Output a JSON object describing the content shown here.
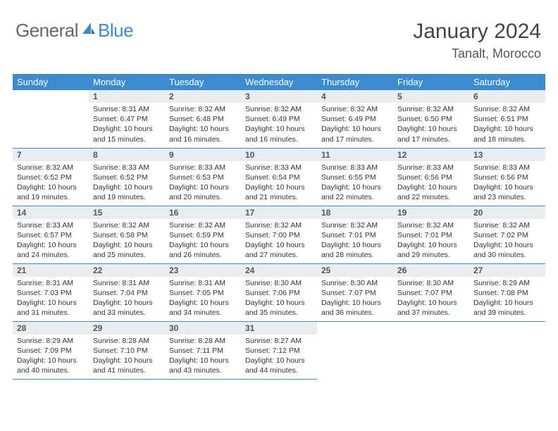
{
  "brand": {
    "part1": "General",
    "part2": "Blue"
  },
  "title": "January 2024",
  "location": "Tanalt, Morocco",
  "colors": {
    "header_bg": "#3b8ccf",
    "header_text": "#ffffff",
    "daynum_bg": "#e9edf0",
    "border": "#3b8ccf",
    "logo_gray": "#666666",
    "logo_blue": "#3b8ccf"
  },
  "weekdays": [
    "Sunday",
    "Monday",
    "Tuesday",
    "Wednesday",
    "Thursday",
    "Friday",
    "Saturday"
  ],
  "blank_cells_before_first": 1,
  "days": [
    {
      "n": "1",
      "sunrise": "8:31 AM",
      "sunset": "6:47 PM",
      "daylight": "10 hours and 15 minutes."
    },
    {
      "n": "2",
      "sunrise": "8:32 AM",
      "sunset": "6:48 PM",
      "daylight": "10 hours and 16 minutes."
    },
    {
      "n": "3",
      "sunrise": "8:32 AM",
      "sunset": "6:49 PM",
      "daylight": "10 hours and 16 minutes."
    },
    {
      "n": "4",
      "sunrise": "8:32 AM",
      "sunset": "6:49 PM",
      "daylight": "10 hours and 17 minutes."
    },
    {
      "n": "5",
      "sunrise": "8:32 AM",
      "sunset": "6:50 PM",
      "daylight": "10 hours and 17 minutes."
    },
    {
      "n": "6",
      "sunrise": "8:32 AM",
      "sunset": "6:51 PM",
      "daylight": "10 hours and 18 minutes."
    },
    {
      "n": "7",
      "sunrise": "8:32 AM",
      "sunset": "6:52 PM",
      "daylight": "10 hours and 19 minutes."
    },
    {
      "n": "8",
      "sunrise": "8:33 AM",
      "sunset": "6:52 PM",
      "daylight": "10 hours and 19 minutes."
    },
    {
      "n": "9",
      "sunrise": "8:33 AM",
      "sunset": "6:53 PM",
      "daylight": "10 hours and 20 minutes."
    },
    {
      "n": "10",
      "sunrise": "8:33 AM",
      "sunset": "6:54 PM",
      "daylight": "10 hours and 21 minutes."
    },
    {
      "n": "11",
      "sunrise": "8:33 AM",
      "sunset": "6:55 PM",
      "daylight": "10 hours and 22 minutes."
    },
    {
      "n": "12",
      "sunrise": "8:33 AM",
      "sunset": "6:56 PM",
      "daylight": "10 hours and 22 minutes."
    },
    {
      "n": "13",
      "sunrise": "8:33 AM",
      "sunset": "6:56 PM",
      "daylight": "10 hours and 23 minutes."
    },
    {
      "n": "14",
      "sunrise": "8:33 AM",
      "sunset": "6:57 PM",
      "daylight": "10 hours and 24 minutes."
    },
    {
      "n": "15",
      "sunrise": "8:32 AM",
      "sunset": "6:58 PM",
      "daylight": "10 hours and 25 minutes."
    },
    {
      "n": "16",
      "sunrise": "8:32 AM",
      "sunset": "6:59 PM",
      "daylight": "10 hours and 26 minutes."
    },
    {
      "n": "17",
      "sunrise": "8:32 AM",
      "sunset": "7:00 PM",
      "daylight": "10 hours and 27 minutes."
    },
    {
      "n": "18",
      "sunrise": "8:32 AM",
      "sunset": "7:01 PM",
      "daylight": "10 hours and 28 minutes."
    },
    {
      "n": "19",
      "sunrise": "8:32 AM",
      "sunset": "7:01 PM",
      "daylight": "10 hours and 29 minutes."
    },
    {
      "n": "20",
      "sunrise": "8:32 AM",
      "sunset": "7:02 PM",
      "daylight": "10 hours and 30 minutes."
    },
    {
      "n": "21",
      "sunrise": "8:31 AM",
      "sunset": "7:03 PM",
      "daylight": "10 hours and 31 minutes."
    },
    {
      "n": "22",
      "sunrise": "8:31 AM",
      "sunset": "7:04 PM",
      "daylight": "10 hours and 33 minutes."
    },
    {
      "n": "23",
      "sunrise": "8:31 AM",
      "sunset": "7:05 PM",
      "daylight": "10 hours and 34 minutes."
    },
    {
      "n": "24",
      "sunrise": "8:30 AM",
      "sunset": "7:06 PM",
      "daylight": "10 hours and 35 minutes."
    },
    {
      "n": "25",
      "sunrise": "8:30 AM",
      "sunset": "7:07 PM",
      "daylight": "10 hours and 36 minutes."
    },
    {
      "n": "26",
      "sunrise": "8:30 AM",
      "sunset": "7:07 PM",
      "daylight": "10 hours and 37 minutes."
    },
    {
      "n": "27",
      "sunrise": "8:29 AM",
      "sunset": "7:08 PM",
      "daylight": "10 hours and 39 minutes."
    },
    {
      "n": "28",
      "sunrise": "8:29 AM",
      "sunset": "7:09 PM",
      "daylight": "10 hours and 40 minutes."
    },
    {
      "n": "29",
      "sunrise": "8:28 AM",
      "sunset": "7:10 PM",
      "daylight": "10 hours and 41 minutes."
    },
    {
      "n": "30",
      "sunrise": "8:28 AM",
      "sunset": "7:11 PM",
      "daylight": "10 hours and 43 minutes."
    },
    {
      "n": "31",
      "sunrise": "8:27 AM",
      "sunset": "7:12 PM",
      "daylight": "10 hours and 44 minutes."
    }
  ],
  "labels": {
    "sunrise": "Sunrise:",
    "sunset": "Sunset:",
    "daylight": "Daylight:"
  }
}
